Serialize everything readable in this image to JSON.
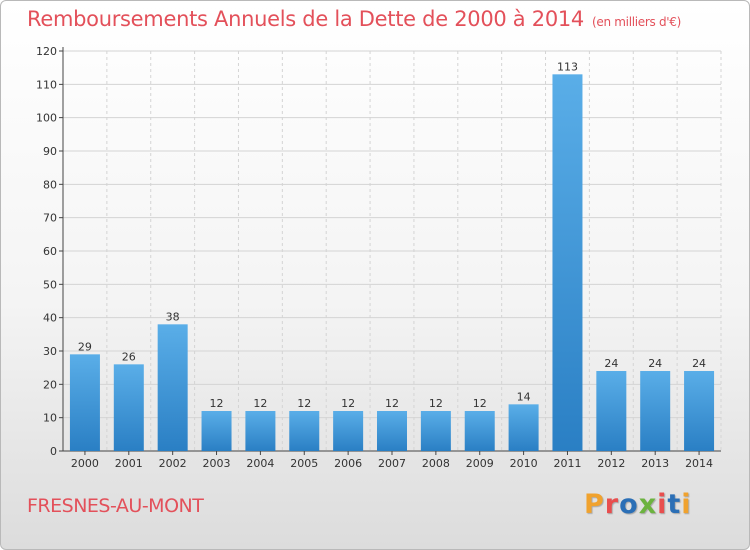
{
  "header": {
    "title": "Remboursements Annuels de la Dette de 2000 à 2014",
    "unit": "(en milliers d'€)"
  },
  "footer": {
    "commune": "FRESNES-AU-MONT",
    "logo": [
      "P",
      "r",
      "o",
      "x",
      "i",
      "t",
      "i"
    ],
    "logo_colors": [
      "#f0a22e",
      "#e84e4e",
      "#2b6fb6",
      "#6cb33f",
      "#e84e4e",
      "#2b6fb6",
      "#f0a22e"
    ]
  },
  "chart_data": {
    "type": "bar",
    "title": "Remboursements Annuels de la Dette de 2000 à 2014",
    "categories": [
      "2000",
      "2001",
      "2002",
      "2003",
      "2004",
      "2005",
      "2006",
      "2007",
      "2008",
      "2009",
      "2010",
      "2011",
      "2012",
      "2013",
      "2014"
    ],
    "values": [
      29,
      26,
      38,
      12,
      12,
      12,
      12,
      12,
      12,
      12,
      14,
      113,
      24,
      24,
      24
    ],
    "ylim": [
      0,
      120
    ],
    "yticks": [
      0,
      10,
      20,
      30,
      40,
      50,
      60,
      70,
      80,
      90,
      100,
      110,
      120
    ],
    "grid": true,
    "bar_color_top": "#5aaee8",
    "bar_color_bottom": "#2a7fc4"
  }
}
